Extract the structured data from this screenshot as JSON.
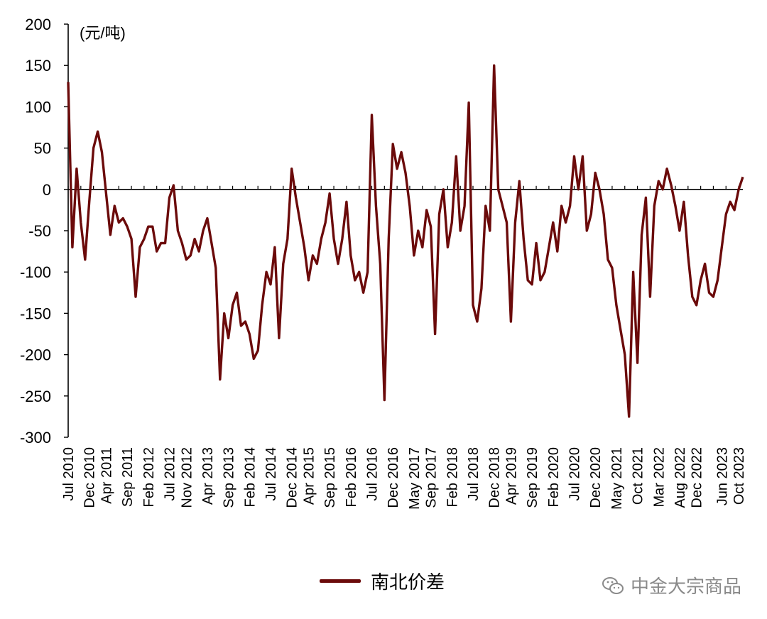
{
  "chart_data": {
    "type": "line",
    "unit_label": "(元/吨)",
    "ylim": [
      -300,
      200
    ],
    "yticks": [
      200,
      150,
      100,
      50,
      0,
      -50,
      -100,
      -150,
      -200,
      -250,
      -300
    ],
    "x_tick_labels": [
      "Jul 2010",
      "Dec 2010",
      "Apr 2011",
      "Sep 2011",
      "Feb 2012",
      "Jul 2012",
      "Nov 2012",
      "Apr 2013",
      "Sep 2013",
      "Feb 2014",
      "Jul 2014",
      "Dec 2014",
      "Apr 2015",
      "Sep 2015",
      "Feb 2016",
      "Jul 2016",
      "Dec 2016",
      "May 2017",
      "Sep 2017",
      "Feb 2018",
      "Jul 2018",
      "Dec 2018",
      "Apr 2019",
      "Sep 2019",
      "Feb 2020",
      "Jul 2020",
      "Dec 2020",
      "May 2021",
      "Oct 2021",
      "Mar 2022",
      "Aug 2022",
      "Dec 2022",
      "Jun 2023",
      "Oct 2023"
    ],
    "grid": false,
    "zero_line": true,
    "legend_position": "bottom",
    "color": "#6b0a0a",
    "series": [
      {
        "name": "南北价差",
        "points": [
          [
            "2010-07",
            130
          ],
          [
            "2010-08",
            -70
          ],
          [
            "2010-09",
            25
          ],
          [
            "2010-10",
            -40
          ],
          [
            "2010-11",
            -85
          ],
          [
            "2010-12",
            -15
          ],
          [
            "2011-01",
            50
          ],
          [
            "2011-02",
            70
          ],
          [
            "2011-03",
            45
          ],
          [
            "2011-04",
            -5
          ],
          [
            "2011-05",
            -55
          ],
          [
            "2011-06",
            -20
          ],
          [
            "2011-07",
            -40
          ],
          [
            "2011-08",
            -35
          ],
          [
            "2011-09",
            -45
          ],
          [
            "2011-10",
            -60
          ],
          [
            "2011-11",
            -130
          ],
          [
            "2011-12",
            -70
          ],
          [
            "2012-01",
            -60
          ],
          [
            "2012-02",
            -45
          ],
          [
            "2012-03",
            -45
          ],
          [
            "2012-04",
            -75
          ],
          [
            "2012-05",
            -65
          ],
          [
            "2012-06",
            -65
          ],
          [
            "2012-07",
            -10
          ],
          [
            "2012-08",
            5
          ],
          [
            "2012-09",
            -50
          ],
          [
            "2012-10",
            -65
          ],
          [
            "2012-11",
            -85
          ],
          [
            "2012-12",
            -80
          ],
          [
            "2013-01",
            -60
          ],
          [
            "2013-02",
            -75
          ],
          [
            "2013-03",
            -50
          ],
          [
            "2013-04",
            -35
          ],
          [
            "2013-05",
            -65
          ],
          [
            "2013-06",
            -95
          ],
          [
            "2013-07",
            -230
          ],
          [
            "2013-08",
            -150
          ],
          [
            "2013-09",
            -180
          ],
          [
            "2013-10",
            -140
          ],
          [
            "2013-11",
            -125
          ],
          [
            "2013-12",
            -165
          ],
          [
            "2014-01",
            -160
          ],
          [
            "2014-02",
            -175
          ],
          [
            "2014-03",
            -205
          ],
          [
            "2014-04",
            -195
          ],
          [
            "2014-05",
            -140
          ],
          [
            "2014-06",
            -100
          ],
          [
            "2014-07",
            -115
          ],
          [
            "2014-08",
            -70
          ],
          [
            "2014-09",
            -180
          ],
          [
            "2014-10",
            -90
          ],
          [
            "2014-11",
            -60
          ],
          [
            "2014-12",
            25
          ],
          [
            "2015-01",
            -10
          ],
          [
            "2015-02",
            -40
          ],
          [
            "2015-03",
            -70
          ],
          [
            "2015-04",
            -110
          ],
          [
            "2015-05",
            -80
          ],
          [
            "2015-06",
            -90
          ],
          [
            "2015-07",
            -60
          ],
          [
            "2015-08",
            -40
          ],
          [
            "2015-09",
            -5
          ],
          [
            "2015-10",
            -60
          ],
          [
            "2015-11",
            -90
          ],
          [
            "2015-12",
            -60
          ],
          [
            "2016-01",
            -15
          ],
          [
            "2016-02",
            -80
          ],
          [
            "2016-03",
            -110
          ],
          [
            "2016-04",
            -100
          ],
          [
            "2016-05",
            -125
          ],
          [
            "2016-06",
            -100
          ],
          [
            "2016-07",
            90
          ],
          [
            "2016-08",
            -20
          ],
          [
            "2016-09",
            -90
          ],
          [
            "2016-10",
            -255
          ],
          [
            "2016-11",
            -60
          ],
          [
            "2016-12",
            55
          ],
          [
            "2017-01",
            25
          ],
          [
            "2017-02",
            45
          ],
          [
            "2017-03",
            20
          ],
          [
            "2017-04",
            -20
          ],
          [
            "2017-05",
            -80
          ],
          [
            "2017-06",
            -50
          ],
          [
            "2017-07",
            -70
          ],
          [
            "2017-08",
            -25
          ],
          [
            "2017-09",
            -45
          ],
          [
            "2017-10",
            -175
          ],
          [
            "2017-11",
            -30
          ],
          [
            "2017-12",
            0
          ],
          [
            "2018-01",
            -70
          ],
          [
            "2018-02",
            -40
          ],
          [
            "2018-03",
            40
          ],
          [
            "2018-04",
            -50
          ],
          [
            "2018-05",
            -20
          ],
          [
            "2018-06",
            105
          ],
          [
            "2018-07",
            -140
          ],
          [
            "2018-08",
            -160
          ],
          [
            "2018-09",
            -120
          ],
          [
            "2018-10",
            -20
          ],
          [
            "2018-11",
            -50
          ],
          [
            "2018-12",
            150
          ],
          [
            "2019-01",
            0
          ],
          [
            "2019-02",
            -20
          ],
          [
            "2019-03",
            -40
          ],
          [
            "2019-04",
            -160
          ],
          [
            "2019-05",
            -40
          ],
          [
            "2019-06",
            10
          ],
          [
            "2019-07",
            -60
          ],
          [
            "2019-08",
            -110
          ],
          [
            "2019-09",
            -115
          ],
          [
            "2019-10",
            -65
          ],
          [
            "2019-11",
            -110
          ],
          [
            "2019-12",
            -100
          ],
          [
            "2020-01",
            -70
          ],
          [
            "2020-02",
            -40
          ],
          [
            "2020-03",
            -75
          ],
          [
            "2020-04",
            -20
          ],
          [
            "2020-05",
            -40
          ],
          [
            "2020-06",
            -20
          ],
          [
            "2020-07",
            40
          ],
          [
            "2020-08",
            0
          ],
          [
            "2020-09",
            40
          ],
          [
            "2020-10",
            -50
          ],
          [
            "2020-11",
            -30
          ],
          [
            "2020-12",
            20
          ],
          [
            "2021-01",
            0
          ],
          [
            "2021-02",
            -30
          ],
          [
            "2021-03",
            -85
          ],
          [
            "2021-04",
            -95
          ],
          [
            "2021-05",
            -140
          ],
          [
            "2021-06",
            -170
          ],
          [
            "2021-07",
            -200
          ],
          [
            "2021-08",
            -275
          ],
          [
            "2021-09",
            -100
          ],
          [
            "2021-10",
            -210
          ],
          [
            "2021-11",
            -55
          ],
          [
            "2021-12",
            -10
          ],
          [
            "2022-01",
            -130
          ],
          [
            "2022-02",
            -20
          ],
          [
            "2022-03",
            10
          ],
          [
            "2022-04",
            0
          ],
          [
            "2022-05",
            25
          ],
          [
            "2022-06",
            5
          ],
          [
            "2022-07",
            -20
          ],
          [
            "2022-08",
            -50
          ],
          [
            "2022-09",
            -15
          ],
          [
            "2022-10",
            -80
          ],
          [
            "2022-11",
            -130
          ],
          [
            "2022-12",
            -140
          ],
          [
            "2023-01",
            -110
          ],
          [
            "2023-02",
            -90
          ],
          [
            "2023-03",
            -125
          ],
          [
            "2023-04",
            -130
          ],
          [
            "2023-05",
            -110
          ],
          [
            "2023-06",
            -70
          ],
          [
            "2023-07",
            -30
          ],
          [
            "2023-08",
            -15
          ],
          [
            "2023-09",
            -25
          ],
          [
            "2023-10",
            0
          ],
          [
            "2023-11",
            15
          ]
        ]
      }
    ]
  },
  "watermark": {
    "text": "中金大宗商品"
  }
}
